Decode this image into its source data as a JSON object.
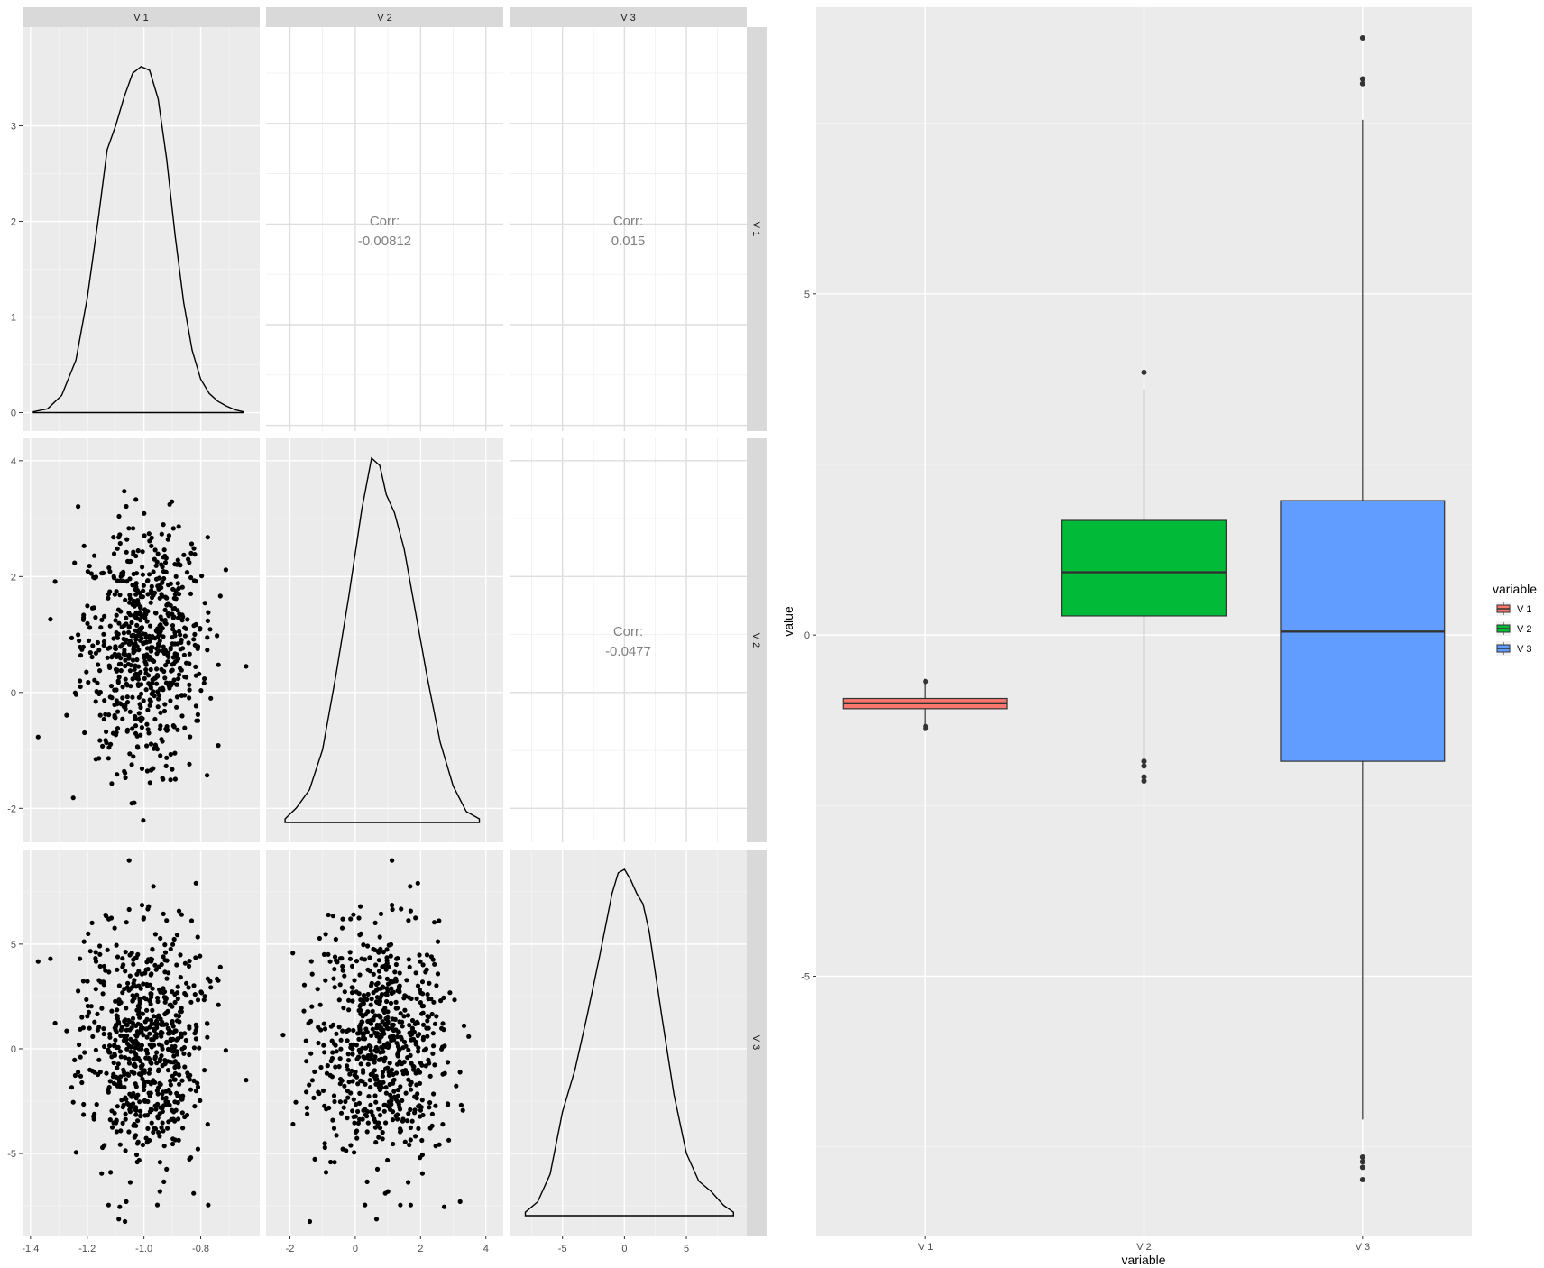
{
  "chart_data": [
    {
      "type": "scatter",
      "panel": "pairs-matrix",
      "variables": [
        "V 1",
        "V 2",
        "V 3"
      ],
      "axes": {
        "V 1": {
          "lim": [
            -1.39,
            -0.63
          ],
          "ticks": [
            -1.4,
            -1.2,
            -1.0,
            -0.8
          ],
          "tick_labels": [
            "-1.4",
            "-1.2",
            "-1.0",
            "-0.8"
          ],
          "minor": [
            -1.3,
            -1.1,
            -0.9,
            -0.7
          ]
        },
        "V 2": {
          "lim": [
            -2.4,
            4.2
          ],
          "ticks": [
            -2,
            0,
            2,
            4
          ],
          "tick_labels": [
            "-2",
            "0",
            "2",
            "4"
          ],
          "minor": [
            -1,
            1,
            3
          ]
        },
        "V 3": {
          "lim": [
            -8.4,
            9.0
          ],
          "ticks": [
            -5,
            0,
            5
          ],
          "tick_labels": [
            "-5",
            "0",
            "5"
          ],
          "minor": [
            -7.5,
            -2.5,
            2.5,
            7.5
          ]
        }
      },
      "densities": [
        {
          "variable": "V 1",
          "ylim": [
            -0.08,
            3.92
          ],
          "yticks": [
            0,
            1,
            2,
            3
          ],
          "ytick_labels": [
            "0",
            "1",
            "2",
            "3"
          ],
          "x": [
            -1.39,
            -1.34,
            -1.29,
            -1.24,
            -1.2,
            -1.16,
            -1.13,
            -1.1,
            -1.07,
            -1.04,
            -1.01,
            -0.98,
            -0.95,
            -0.92,
            -0.89,
            -0.86,
            -0.83,
            -0.8,
            -0.77,
            -0.74,
            -0.71,
            -0.68,
            -0.65
          ],
          "y": [
            0.01,
            0.04,
            0.18,
            0.55,
            1.2,
            2.05,
            2.75,
            3.0,
            3.3,
            3.55,
            3.62,
            3.58,
            3.28,
            2.65,
            1.85,
            1.15,
            0.65,
            0.35,
            0.2,
            0.12,
            0.07,
            0.03,
            0.01
          ]
        },
        {
          "variable": "V 2",
          "x": [
            -2.15,
            -1.8,
            -1.4,
            -1.0,
            -0.6,
            -0.2,
            0.2,
            0.5,
            0.75,
            0.95,
            1.2,
            1.5,
            1.8,
            2.2,
            2.6,
            3.0,
            3.4,
            3.8
          ],
          "y": [
            0.01,
            0.04,
            0.09,
            0.2,
            0.4,
            0.62,
            0.86,
            1.0,
            0.98,
            0.9,
            0.85,
            0.75,
            0.6,
            0.4,
            0.22,
            0.1,
            0.03,
            0.01
          ]
        },
        {
          "variable": "V 3",
          "x": [
            -8.0,
            -7.0,
            -6.0,
            -5.0,
            -4.0,
            -3.0,
            -2.0,
            -1.0,
            -0.5,
            0.0,
            0.5,
            1.0,
            1.5,
            2.0,
            3.0,
            4.0,
            5.0,
            6.0,
            7.0,
            8.0,
            8.8
          ],
          "y": [
            0.01,
            0.04,
            0.12,
            0.3,
            0.42,
            0.58,
            0.75,
            0.93,
            0.99,
            1.0,
            0.97,
            0.93,
            0.9,
            0.82,
            0.58,
            0.35,
            0.18,
            0.1,
            0.07,
            0.03,
            0.01
          ]
        }
      ],
      "correlations": [
        {
          "row": "V 1",
          "col": "V 2",
          "label": "Corr:",
          "value": "-0.00812"
        },
        {
          "row": "V 1",
          "col": "V 3",
          "label": "Corr:",
          "value": "0.015"
        },
        {
          "row": "V 2",
          "col": "V 3",
          "label": "Corr:",
          "value": "-0.0477"
        }
      ],
      "scatter_points_approx": 1000
    },
    {
      "type": "box",
      "panel": "boxplot",
      "xlabel": "variable",
      "ylabel": "value",
      "categories": [
        "V 1",
        "V 2",
        "V 3"
      ],
      "ylim": [
        -8.8,
        9.2
      ],
      "yticks": [
        -5,
        0,
        5
      ],
      "ytick_labels": [
        "-5",
        "0",
        "5"
      ],
      "yminor": [
        -7.5,
        -2.5,
        2.5,
        7.5
      ],
      "boxes": [
        {
          "name": "V 1",
          "color": "#F8766D",
          "whisker_low": -1.3,
          "q1": -1.08,
          "median": -1.0,
          "q3": -0.93,
          "whisker_high": -0.7,
          "outliers": [
            -0.68,
            -1.34,
            -1.37
          ]
        },
        {
          "name": "V 2",
          "color": "#00BA38",
          "whisker_low": -1.8,
          "q1": 0.28,
          "median": 0.92,
          "q3": 1.68,
          "whisker_high": 3.6,
          "outliers": [
            3.85,
            -1.85,
            -1.92,
            -2.08,
            -2.14
          ]
        },
        {
          "name": "V 3",
          "color": "#619CFF",
          "whisker_low": -7.1,
          "q1": -1.85,
          "median": 0.05,
          "q3": 1.97,
          "whisker_high": 7.55,
          "outliers": [
            8.75,
            8.15,
            8.08,
            -7.65,
            -7.72,
            -7.8,
            -7.98
          ]
        }
      ],
      "legend": {
        "title": "variable",
        "position": "right",
        "entries": [
          "V 1",
          "V 2",
          "V 3"
        ]
      }
    }
  ]
}
